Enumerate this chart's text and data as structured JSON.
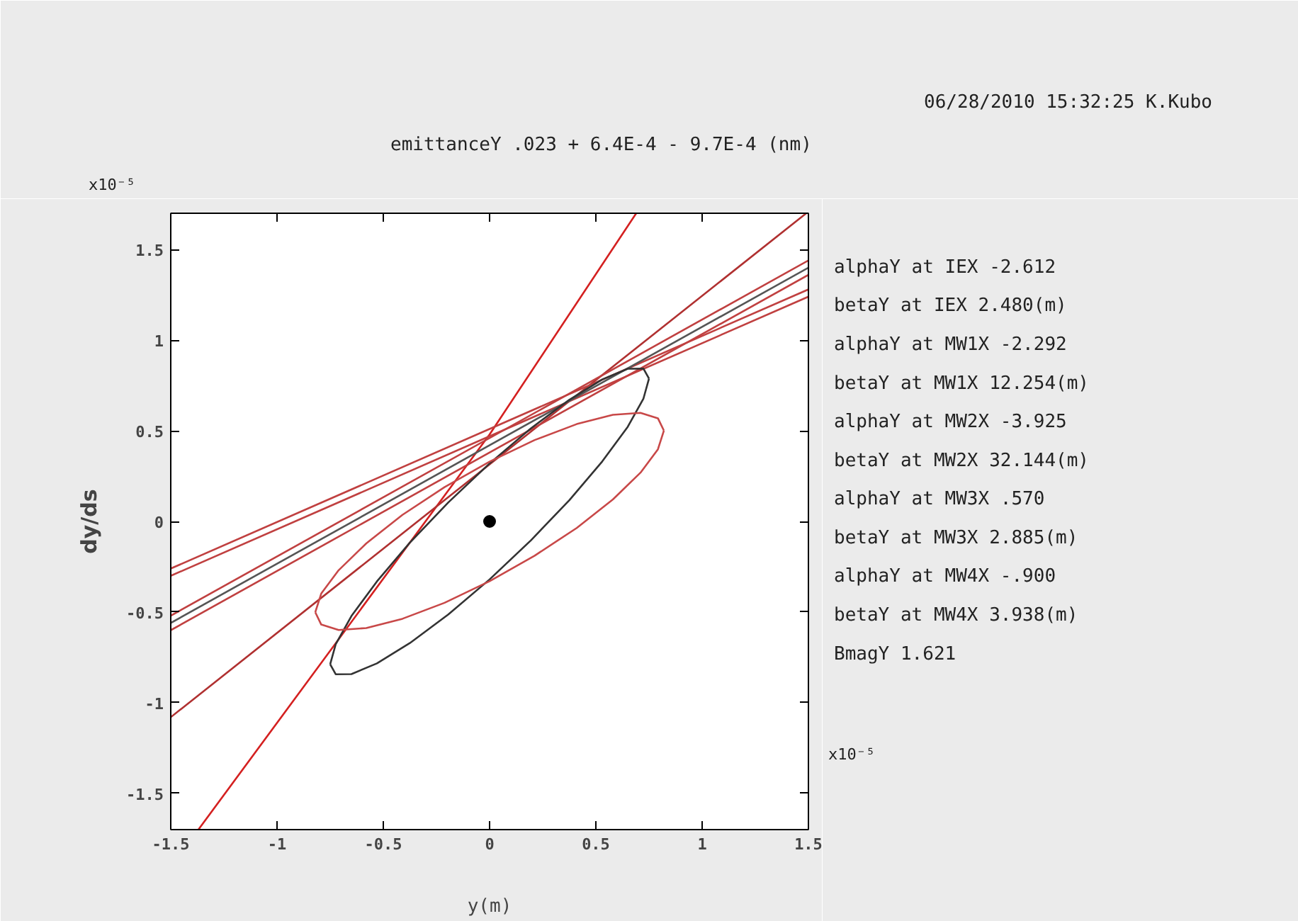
{
  "chart_data": {
    "type": "line",
    "title": "emittanceY    .023 + 6.4E-4 - 9.7E-4 (nm)",
    "subtitle": "06/28/2010 15:32:25 K.Kubo",
    "xlabel": "y(m)",
    "ylabel": "dy/ds",
    "xlim": [
      -1.5,
      1.5
    ],
    "ylim": [
      -1.7,
      1.7
    ],
    "xticks": [
      -1.5,
      -1,
      -0.5,
      0,
      0.5,
      1,
      1.5
    ],
    "yticks": [
      -1.5,
      -1,
      -0.5,
      0,
      0.5,
      1,
      1.5
    ],
    "grid": false,
    "line_style": "solid",
    "marker": "none",
    "annotations": [
      "x10⁻⁵",
      "x10⁻⁵",
      "alphaY at IEX  -2.612",
      "betaY  at IEX   2.480(m)",
      "alphaY at MW1X  -2.292",
      "betaY  at MW1X  12.254(m)",
      "alphaY at MW2X  -3.925",
      "betaY  at MW2X  32.144(m)",
      "alphaY at MW3X     .570",
      "betaY  at MW3X   2.885(m)",
      "alphaY at MW4X   -.900",
      "betaY  at MW4X   3.938(m)",
      "BmagY   1.621"
    ],
    "series": [
      {
        "x": [
          -1.37,
          0,
          0.69
        ],
        "values": [
          -1.7,
          0.48,
          1.7
        ],
        "color": "#d42020"
      },
      {
        "x": [
          -1.5,
          1.49
        ],
        "values": [
          -1.08,
          1.7
        ],
        "color": "#b03030"
      },
      {
        "x": [
          -1.5,
          1.5
        ],
        "values": [
          -0.26,
          1.28
        ],
        "color": "#c04040"
      },
      {
        "x": [
          -1.5,
          1.5
        ],
        "values": [
          -0.3,
          1.24
        ],
        "color": "#c04040"
      },
      {
        "x": [
          -1.5,
          1.5
        ],
        "values": [
          -0.52,
          1.44
        ],
        "color": "#c04040"
      },
      {
        "x": [
          -1.5,
          1.5
        ],
        "values": [
          -0.56,
          1.4
        ],
        "color": "#555555"
      },
      {
        "x": [
          -1.5,
          1.5
        ],
        "values": [
          -0.6,
          1.36
        ],
        "color": "#c04040"
      },
      {
        "x": [
          0.75,
          0.724,
          0.65,
          0.53,
          0.375,
          0.194,
          0,
          -0.194,
          -0.375,
          -0.53,
          -0.65,
          -0.724,
          -0.75
        ],
        "values": [
          0.788,
          0.843,
          0.842,
          0.783,
          0.671,
          0.513,
          0.32,
          0.105,
          -0.117,
          -0.331,
          -0.522,
          -0.678,
          -0.788
        ],
        "color": "#333333"
      },
      {
        "x": [
          -0.75,
          -0.724,
          -0.65,
          -0.53,
          -0.375,
          -0.194,
          0,
          0.194,
          0.375,
          0.53,
          0.65,
          0.724,
          0.75
        ],
        "values": [
          -0.788,
          -0.843,
          -0.842,
          -0.783,
          -0.671,
          -0.513,
          -0.32,
          -0.105,
          0.117,
          0.331,
          0.522,
          0.678,
          0.788
        ],
        "color": "#333333"
      },
      {
        "x": [
          0.82,
          0.792,
          0.71,
          0.58,
          0.41,
          0.212,
          0,
          -0.212,
          -0.41,
          -0.58,
          -0.71,
          -0.792,
          -0.82
        ],
        "values": [
          0.501,
          0.569,
          0.599,
          0.588,
          0.537,
          0.449,
          0.33,
          0.189,
          0.036,
          -0.121,
          -0.269,
          -0.398,
          -0.501
        ],
        "color": "#c84848"
      },
      {
        "x": [
          -0.82,
          -0.792,
          -0.71,
          -0.58,
          -0.41,
          -0.212,
          0,
          0.212,
          0.41,
          0.58,
          0.71,
          0.792,
          0.82
        ],
        "values": [
          -0.501,
          -0.569,
          -0.599,
          -0.588,
          -0.537,
          -0.449,
          -0.33,
          -0.189,
          -0.036,
          0.121,
          0.269,
          0.398,
          0.501
        ],
        "color": "#c84848"
      },
      {
        "type": "scatter",
        "marker": "circle",
        "x": [
          0
        ],
        "values": [
          0
        ],
        "color": "#000000"
      }
    ]
  }
}
